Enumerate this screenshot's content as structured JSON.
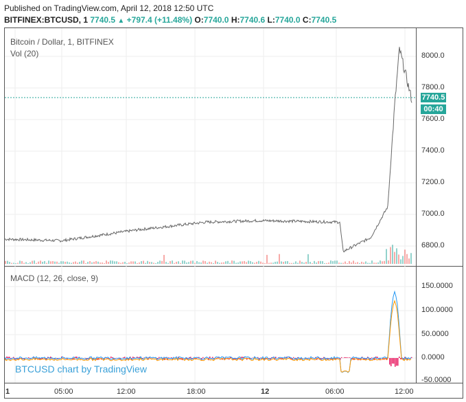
{
  "header": {
    "published": "Published on TradingView.com, April 12, 2018 12:50 UTC",
    "symbol": "BITFINEX:BTCUSD, 1",
    "last": "7740.5",
    "change": "+797.4 (+11.48%)",
    "o_label": "O:",
    "o_val": "7740.0",
    "h_label": "H:",
    "h_val": "7740.6",
    "l_label": "L:",
    "l_val": "7740.0",
    "c_label": "C:",
    "c_val": "7740.5"
  },
  "legends": {
    "price": "Bitcoin / Dollar, 1, BITFINEX",
    "volume": "Vol (20)",
    "macd": "MACD (12, 26, close, 9)"
  },
  "watermark": "BTCUSD chart by TradingView",
  "badges": {
    "price": "7740.5",
    "time": "00:40"
  },
  "price_axis": [
    "8000.0",
    "7800.0",
    "7600.0",
    "7400.0",
    "7200.0",
    "7000.0",
    "6800.0"
  ],
  "macd_axis": [
    "150.0000",
    "100.0000",
    "50.0000",
    "0.0000",
    "-50.0000"
  ],
  "time_axis": [
    "1",
    "05:00",
    "12:00",
    "18:00",
    "12",
    "06:00",
    "12:00"
  ],
  "colors": {
    "up": "#26a69a",
    "down": "#ef5350",
    "macd": "#2196f3",
    "signal": "#ff9800",
    "hist_neg": "#e91e63"
  },
  "chart_data": {
    "type": "line",
    "series": [],
    "x": [
      "05:00",
      "12:00",
      "18:00",
      "12",
      "06:00",
      "12:00"
    ],
    "approx_price": [
      6840,
      6830,
      6900,
      6950,
      6960,
      6950,
      6760,
      6850,
      7050,
      7700,
      8070,
      7740
    ],
    "ylim": [
      6680,
      8120
    ]
  }
}
